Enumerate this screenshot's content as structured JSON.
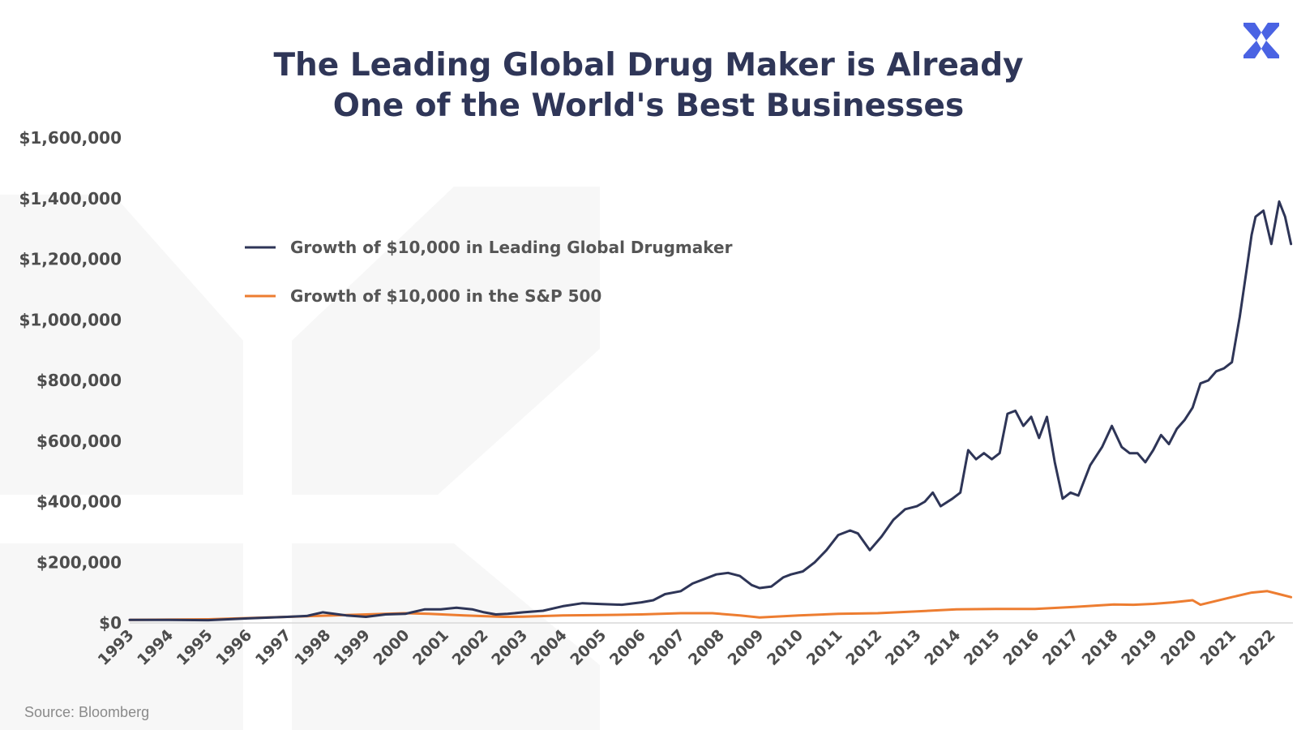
{
  "title": {
    "line1": "The Leading Global Drug Maker is Already",
    "line2": "One of the World's Best Businesses"
  },
  "source": "Source: Bloomberg",
  "logo": {
    "icon": "brand-x-logo-icon",
    "color": "#4a63e3"
  },
  "colors": {
    "drugmaker": "#2e3557",
    "sp500": "#ed7d31",
    "title": "#2f3658",
    "watermark": "#f6f6f6"
  },
  "chart_data": {
    "type": "line",
    "title": "The Leading Global Drug Maker is Already One of the World's Best Businesses",
    "xlabel": "",
    "ylabel": "",
    "ylim": [
      0,
      1600000
    ],
    "yticks": [
      "$0",
      "$200,000",
      "$400,000",
      "$600,000",
      "$800,000",
      "$1,000,000",
      "$1,200,000",
      "$1,400,000",
      "$1,600,000"
    ],
    "xticks": [
      "1993",
      "1994",
      "1995",
      "1996",
      "1997",
      "1998",
      "1999",
      "2000",
      "2001",
      "2002",
      "2003",
      "2004",
      "2005",
      "2006",
      "2007",
      "2008",
      "2009",
      "2010",
      "2011",
      "2012",
      "2013",
      "2014",
      "2015",
      "2016",
      "2017",
      "2018",
      "2019",
      "2020",
      "2021",
      "2022"
    ],
    "grid": false,
    "legend": "top-left",
    "series": [
      {
        "name": "Growth of $10,000 in Leading Global Drugmaker",
        "x": [
          1993.0,
          1994.0,
          1995.0,
          1996.0,
          1997.0,
          1997.5,
          1997.9,
          1998.5,
          1999.0,
          1999.5,
          2000.0,
          2000.5,
          2000.9,
          2001.3,
          2001.7,
          2002.0,
          2002.3,
          2002.6,
          2003.0,
          2003.5,
          2004.0,
          2004.5,
          2005.0,
          2005.5,
          2006.0,
          2006.3,
          2006.6,
          2007.0,
          2007.3,
          2007.6,
          2007.9,
          2008.2,
          2008.5,
          2008.8,
          2009.0,
          2009.3,
          2009.6,
          2009.8,
          2010.1,
          2010.4,
          2010.7,
          2011.0,
          2011.3,
          2011.5,
          2011.8,
          2012.1,
          2012.4,
          2012.7,
          2013.0,
          2013.2,
          2013.4,
          2013.6,
          2013.9,
          2014.1,
          2014.3,
          2014.5,
          2014.7,
          2014.9,
          2015.1,
          2015.3,
          2015.5,
          2015.7,
          2015.9,
          2016.1,
          2016.3,
          2016.5,
          2016.7,
          2016.9,
          2017.1,
          2017.4,
          2017.7,
          2017.95,
          2018.2,
          2018.4,
          2018.6,
          2018.8,
          2019.0,
          2019.2,
          2019.4,
          2019.6,
          2019.8,
          2020.0,
          2020.2,
          2020.4,
          2020.6,
          2020.8,
          2021.0,
          2021.2,
          2021.4,
          2021.5,
          2021.6,
          2021.8,
          2022.0,
          2022.2,
          2022.35,
          2022.5
        ],
        "values": [
          10000,
          10000,
          9000,
          15000,
          20000,
          23000,
          35000,
          25000,
          20000,
          28000,
          30000,
          45000,
          45000,
          50000,
          45000,
          35000,
          28000,
          30000,
          35000,
          40000,
          55000,
          65000,
          62000,
          60000,
          68000,
          75000,
          95000,
          105000,
          130000,
          145000,
          160000,
          165000,
          155000,
          125000,
          115000,
          120000,
          150000,
          160000,
          170000,
          200000,
          240000,
          290000,
          305000,
          295000,
          240000,
          285000,
          340000,
          375000,
          385000,
          400000,
          430000,
          385000,
          410000,
          430000,
          570000,
          540000,
          560000,
          540000,
          560000,
          690000,
          700000,
          650000,
          680000,
          610000,
          680000,
          530000,
          410000,
          430000,
          420000,
          520000,
          580000,
          650000,
          580000,
          560000,
          560000,
          530000,
          570000,
          620000,
          590000,
          640000,
          670000,
          710000,
          790000,
          800000,
          830000,
          840000,
          860000,
          1010000,
          1190000,
          1280000,
          1340000,
          1360000,
          1250000,
          1390000,
          1340000,
          1250000
        ]
      },
      {
        "name": "Growth of $10,000 in the S&P 500",
        "x": [
          1993.0,
          1995.0,
          1997.0,
          1998.0,
          1999.0,
          2000.0,
          2000.6,
          2001.5,
          2002.5,
          2003.0,
          2004.0,
          2005.0,
          2006.0,
          2007.0,
          2007.8,
          2008.5,
          2009.0,
          2010.0,
          2011.0,
          2012.0,
          2013.0,
          2014.0,
          2015.0,
          2016.0,
          2017.0,
          2018.0,
          2018.5,
          2019.0,
          2019.5,
          2020.0,
          2020.2,
          2021.0,
          2021.5,
          2021.9,
          2022.2,
          2022.5
        ],
        "values": [
          10000,
          12000,
          20000,
          24000,
          28000,
          32000,
          30000,
          25000,
          20000,
          21000,
          25000,
          26000,
          28000,
          32000,
          32000,
          25000,
          18000,
          25000,
          30000,
          32000,
          38000,
          45000,
          46000,
          46000,
          53000,
          61000,
          60000,
          63000,
          68000,
          75000,
          60000,
          85000,
          100000,
          105000,
          95000,
          85000
        ]
      }
    ]
  }
}
